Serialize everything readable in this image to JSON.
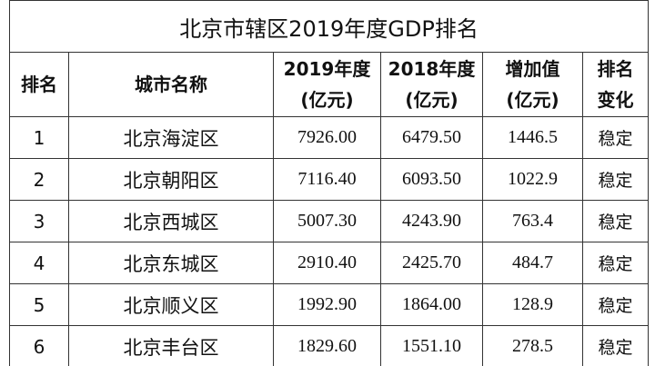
{
  "title": "北京市辖区2019年度GDP排名",
  "table": {
    "headers": [
      [
        "排名"
      ],
      [
        "城市名称"
      ],
      [
        "2019年度",
        "(亿元)"
      ],
      [
        "2018年度",
        "(亿元)"
      ],
      [
        "增加值",
        "(亿元)"
      ],
      [
        "排名",
        "变化"
      ]
    ],
    "rows": [
      [
        "1",
        "北京海淀区",
        "7926.00",
        "6479.50",
        "1446.5",
        "稳定"
      ],
      [
        "2",
        "北京朝阳区",
        "7116.40",
        "6093.50",
        "1022.9",
        "稳定"
      ],
      [
        "3",
        "北京西城区",
        "5007.30",
        "4243.90",
        "763.4",
        "稳定"
      ],
      [
        "4",
        "北京东城区",
        "2910.40",
        "2425.70",
        "484.7",
        "稳定"
      ],
      [
        "5",
        "北京顺义区",
        "1992.90",
        "1864.00",
        "128.9",
        "稳定"
      ],
      [
        "6",
        "北京丰台区",
        "1829.60",
        "1551.10",
        "278.5",
        "稳定"
      ]
    ]
  }
}
